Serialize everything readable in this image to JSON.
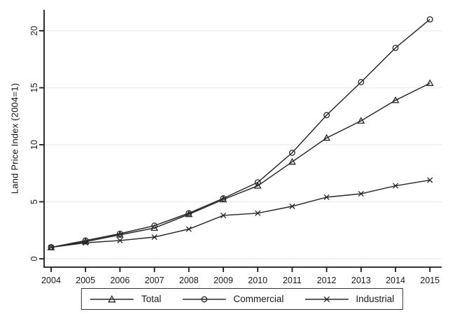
{
  "chart_data": {
    "type": "line",
    "title": "",
    "xlabel": "",
    "ylabel": "Land Price Index (2004=1)",
    "x": [
      2004,
      2005,
      2006,
      2007,
      2008,
      2009,
      2010,
      2011,
      2012,
      2013,
      2014,
      2015
    ],
    "yticks": [
      0,
      5,
      10,
      15,
      20
    ],
    "ylim": [
      0,
      21.8
    ],
    "grid": "horizontal",
    "legend_position": "bottom-center",
    "series": [
      {
        "name": "Total",
        "marker": "triangle",
        "values": [
          1.0,
          1.5,
          2.1,
          2.7,
          3.9,
          5.2,
          6.4,
          8.5,
          10.6,
          12.1,
          13.9,
          15.4
        ]
      },
      {
        "name": "Commercial",
        "marker": "circle",
        "values": [
          1.0,
          1.6,
          2.2,
          2.9,
          4.0,
          5.3,
          6.7,
          9.3,
          12.6,
          15.5,
          18.5,
          21.0
        ]
      },
      {
        "name": "Industrial",
        "marker": "x",
        "values": [
          1.0,
          1.4,
          1.6,
          1.9,
          2.6,
          3.8,
          4.0,
          4.6,
          5.4,
          5.7,
          6.4,
          6.9
        ]
      }
    ],
    "colors": {
      "line": "#262626",
      "axis": "#1a1a1a",
      "grid": "#ececec",
      "background": "#ffffff"
    }
  }
}
